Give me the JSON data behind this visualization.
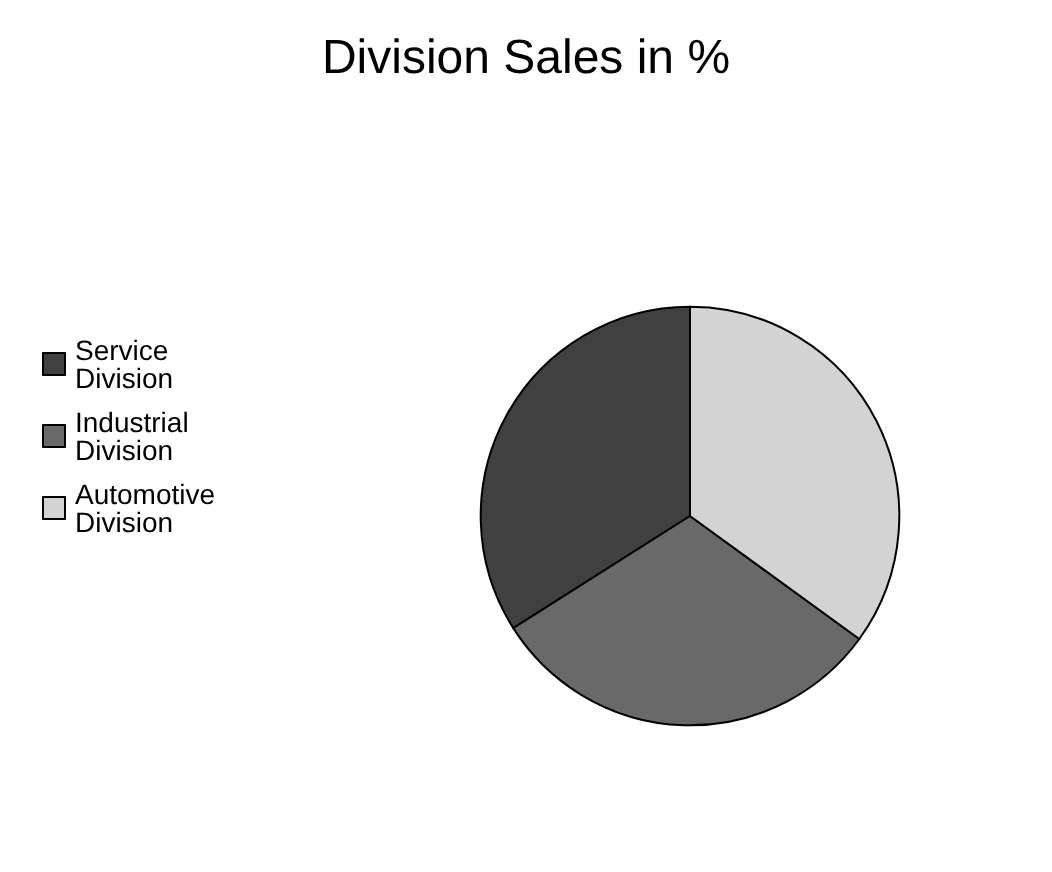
{
  "chart_data": {
    "type": "pie",
    "title": "Division Sales in %",
    "categories": [
      "Service Division",
      "Industrial Division",
      "Automotive Division"
    ],
    "values": [
      34,
      31,
      35
    ],
    "colors": [
      "#404040",
      "#696969",
      "#d3d3d3"
    ],
    "legend": "left"
  }
}
